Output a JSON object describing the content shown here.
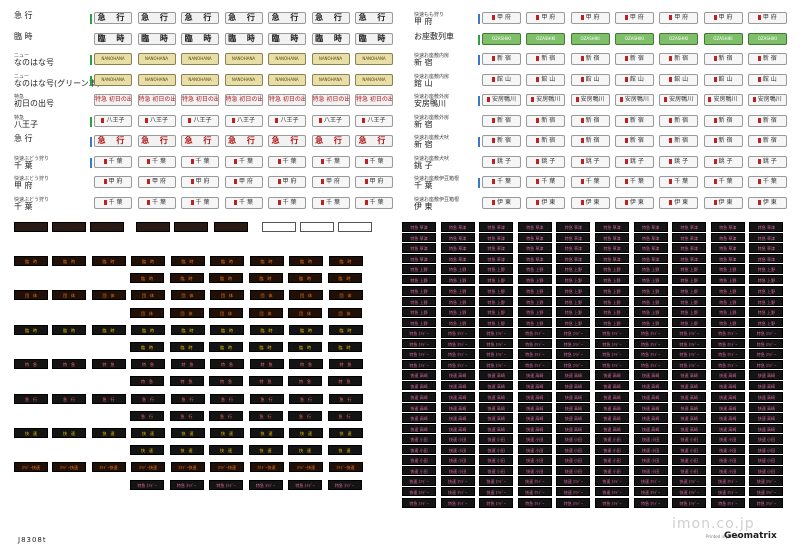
{
  "left_labels": [
    {
      "small": "",
      "big": "急 行",
      "bar": "#2ea043"
    },
    {
      "small": "",
      "big": "臨 時",
      "bar": ""
    },
    {
      "small": "ニュー",
      "big": "なのはな号",
      "bar": "#2ea043"
    },
    {
      "small": "ニュー",
      "big": "なのはな号(グリーン車)",
      "bar": "#2ea043"
    },
    {
      "small": "特急",
      "big": "初日の出号",
      "bar": ""
    },
    {
      "small": "特急",
      "big": "八王子",
      "bar": "#2ea043"
    },
    {
      "small": "",
      "big": "急 行",
      "bar": "#3a78c8"
    },
    {
      "small": "快速ぶどう狩り",
      "big": "千 葉",
      "bar": "#3a78c8"
    },
    {
      "small": "快速ぶどう狩り",
      "big": "甲 府",
      "bar": ""
    },
    {
      "small": "快速ぶどう狩り",
      "big": "千 葉",
      "bar": ""
    }
  ],
  "right_labels": [
    {
      "small": "快速もも狩り",
      "big": "甲 府",
      "bar": "#3a78c8"
    },
    {
      "small": "",
      "big": "お座敷列車",
      "bar": "#2ea043"
    },
    {
      "small": "快速お座敷内房",
      "big": "新 宿",
      "bar": "#3a78c8"
    },
    {
      "small": "快速お座敷内房",
      "big": "館 山",
      "bar": ""
    },
    {
      "small": "快速お座敷外房",
      "big": "安房鴨川",
      "bar": "#3a78c8"
    },
    {
      "small": "快速お座敷外房",
      "big": "新 宿",
      "bar": ""
    },
    {
      "small": "快速お座敷犬吠",
      "big": "新 宿",
      "bar": "#3a78c8"
    },
    {
      "small": "快速お座敷犬吠",
      "big": "銚 子",
      "bar": ""
    },
    {
      "small": "快速お座敷伊豆箱根",
      "big": "千 葉",
      "bar": "#3a78c8"
    },
    {
      "small": "快速お座敷伊豆箱根",
      "big": "伊 東",
      "bar": ""
    }
  ],
  "left_tiles": [
    {
      "text": "急 行",
      "style": "k"
    },
    {
      "text": "臨 時",
      "style": "k"
    },
    {
      "text": "NANOHANA",
      "style": "yel"
    },
    {
      "text": "NANOHANA",
      "style": "yel"
    },
    {
      "text": "特急 初日の出号",
      "style": "redl"
    },
    {
      "text": "八王子",
      "style": "stn"
    },
    {
      "text": "急 行",
      "style": "k red"
    },
    {
      "text": "千 葉",
      "style": "stn"
    },
    {
      "text": "甲 府",
      "style": "stn"
    },
    {
      "text": "千 葉",
      "style": "stn"
    }
  ],
  "right_tiles": [
    {
      "text": "甲 府",
      "style": "stn"
    },
    {
      "text": "OZASHIKI",
      "style": "grn"
    },
    {
      "text": "新 宿",
      "style": "stn"
    },
    {
      "text": "館 山",
      "style": "stn"
    },
    {
      "text": "安房鴨川",
      "style": "stn"
    },
    {
      "text": "新 宿",
      "style": "stn"
    },
    {
      "text": "新 宿",
      "style": "stn"
    },
    {
      "text": "銚 子",
      "style": "stn"
    },
    {
      "text": "千 葉",
      "style": "stn"
    },
    {
      "text": "伊 東",
      "style": "stn"
    }
  ],
  "strips": [
    {
      "text": "",
      "style": ""
    },
    {
      "text": "",
      "style": ""
    },
    {
      "text": "",
      "style": ""
    },
    {
      "text": "",
      "style": ""
    },
    {
      "text": "",
      "style": ""
    },
    {
      "text": "",
      "style": ""
    },
    {
      "text": "",
      "style": "w"
    },
    {
      "text": "",
      "style": "w"
    },
    {
      "text": "",
      "style": "w"
    }
  ],
  "led_left_rows": [
    {
      "text": "臨　時",
      "style": "or",
      "lead": true
    },
    {
      "text": "臨　時",
      "style": "or",
      "lead": false
    },
    {
      "text": "団　体",
      "style": "or",
      "lead": true
    },
    {
      "text": "団　体",
      "style": "or",
      "lead": false
    },
    {
      "text": "臨　時",
      "style": "yl",
      "lead": true
    },
    {
      "text": "臨　時",
      "style": "yl",
      "lead": false
    },
    {
      "text": "特　急",
      "style": "pk",
      "lead": true
    },
    {
      "text": "特　急",
      "style": "pk",
      "lead": false
    },
    {
      "text": "急　行",
      "style": "pk",
      "lead": true
    },
    {
      "text": "急　行",
      "style": "pk",
      "lead": false
    },
    {
      "text": "快　速",
      "style": "yl",
      "lead": true
    },
    {
      "text": "快　速",
      "style": "yl",
      "lead": false
    },
    {
      "text": "ﾎﾘﾃﾞｰ快速",
      "style": "or",
      "lead": true
    },
    {
      "text": "特急 ﾎﾘﾃﾞｰ",
      "style": "mix",
      "lead": false
    }
  ],
  "led_right_rows": [
    {
      "text": "特急 草津",
      "style": "mix"
    },
    {
      "text": "特急 草津",
      "style": "mix"
    },
    {
      "text": "特急 上野",
      "style": "mix"
    },
    {
      "text": "特急 上野",
      "style": "mix"
    },
    {
      "text": "特急 上野",
      "style": "mix"
    },
    {
      "text": "特急 ﾎﾘﾃﾞｰ",
      "style": "mix"
    },
    {
      "text": "特急 ﾎﾘﾃﾞｰ",
      "style": "mix"
    },
    {
      "text": "快速 高崎",
      "style": "mix"
    },
    {
      "text": "快速 高崎",
      "style": "mix"
    },
    {
      "text": "快速 高崎",
      "style": "mix"
    },
    {
      "text": "快速 小田",
      "style": "mix"
    },
    {
      "text": "快速 小田",
      "style": "mix"
    },
    {
      "text": "快速 ﾎﾘﾃﾞｰ",
      "style": "mix"
    },
    {
      "text": "特急 ﾎﾘﾃﾞｰ",
      "style": "mix"
    }
  ],
  "product_code": "J8308t",
  "credit": "Printed in JAPAN",
  "brand": "Geomatrix",
  "watermark": "imon.co.jp"
}
